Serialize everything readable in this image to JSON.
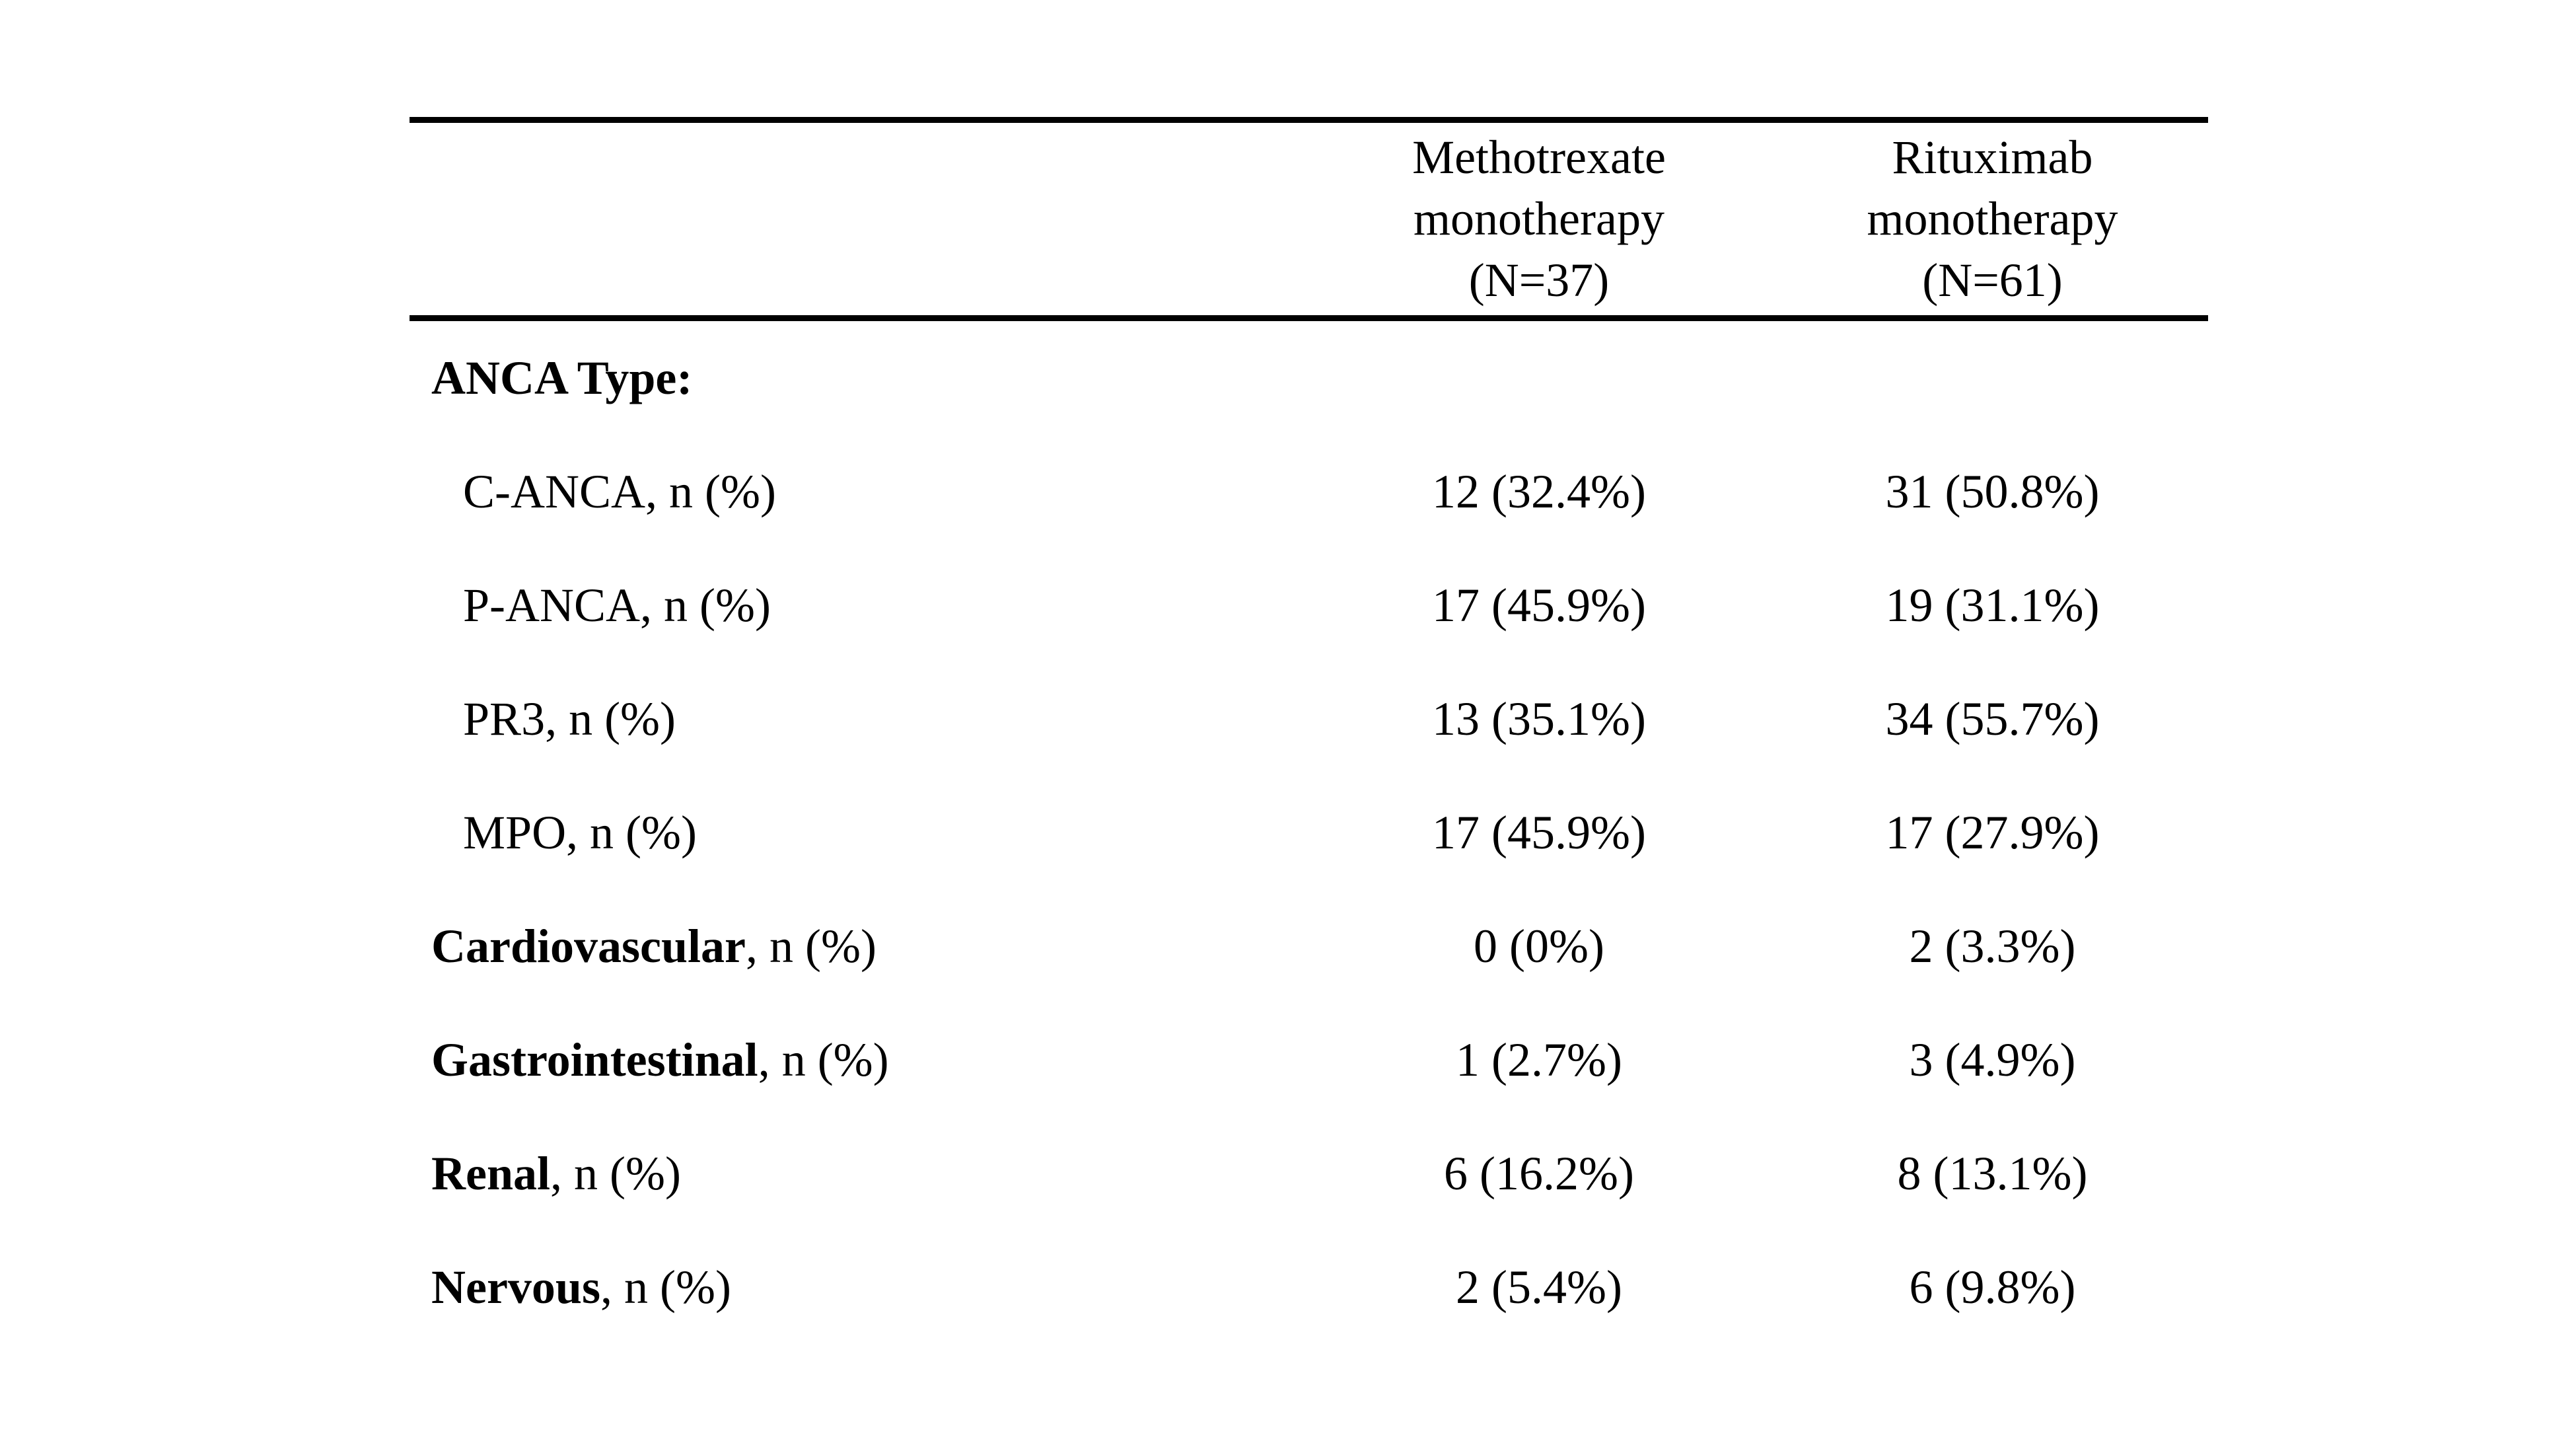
{
  "table": {
    "columns": [
      {
        "lines": [
          "Methotrexate",
          "monotherapy",
          "(N=37)"
        ]
      },
      {
        "lines": [
          "Rituximab",
          "monotherapy",
          "(N=61)"
        ]
      }
    ],
    "rows": [
      {
        "label_bold": "ANCA Type:",
        "label_rest": "",
        "values": [
          "",
          ""
        ]
      },
      {
        "label_bold": "",
        "label_rest": "C-ANCA, n (%)",
        "values": [
          "12 (32.4%)",
          "31 (50.8%)"
        ]
      },
      {
        "label_bold": "",
        "label_rest": "P-ANCA, n (%)",
        "values": [
          "17 (45.9%)",
          "19 (31.1%)"
        ]
      },
      {
        "label_bold": "",
        "label_rest": "PR3, n (%)",
        "values": [
          "13 (35.1%)",
          "34 (55.7%)"
        ]
      },
      {
        "label_bold": "",
        "label_rest": "MPO, n (%)",
        "values": [
          "17 (45.9%)",
          "17 (27.9%)"
        ]
      },
      {
        "label_bold": "Cardiovascular",
        "label_rest": ", n (%)",
        "values": [
          "0 (0%)",
          "2 (3.3%)"
        ]
      },
      {
        "label_bold": "Gastrointestinal",
        "label_rest": ", n (%)",
        "values": [
          "1 (2.7%)",
          "3 (4.9%)"
        ]
      },
      {
        "label_bold": "Renal",
        "label_rest": ", n (%)",
        "values": [
          "6 (16.2%)",
          "8 (13.1%)"
        ]
      },
      {
        "label_bold": "Nervous",
        "label_rest": ", n (%)",
        "values": [
          "2 (5.4%)",
          "6 (9.8%)"
        ]
      }
    ]
  }
}
